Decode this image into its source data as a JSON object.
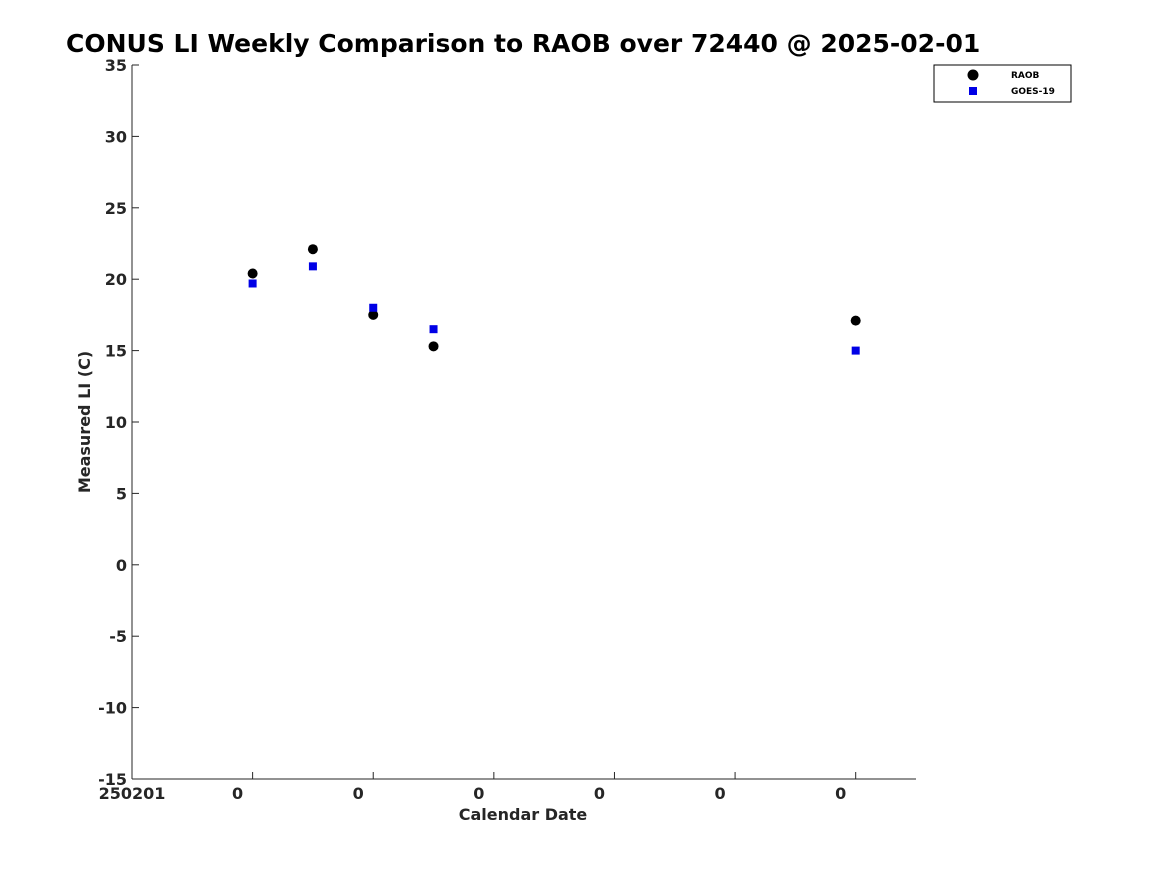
{
  "chart_data": {
    "type": "scatter",
    "title": "CONUS LI Weekly Comparison to RAOB over 72440 @ 2025-02-01",
    "xlabel": "Calendar Date",
    "ylabel": "Measured LI (C)",
    "xlim": [
      0,
      6.5
    ],
    "ylim": [
      -15,
      35
    ],
    "yticks": [
      35,
      30,
      25,
      20,
      15,
      10,
      5,
      0,
      -5,
      -10,
      -15
    ],
    "yticklabels": [
      "35",
      "30",
      "25",
      "20",
      "15",
      "10",
      "5",
      "0",
      "-5",
      "-10",
      "-15"
    ],
    "xticks": [
      0,
      1,
      2,
      3,
      4,
      5,
      6
    ],
    "xticklabels": [
      "250201",
      "0",
      "0",
      "0",
      "0",
      "0",
      "0"
    ],
    "grid": false,
    "legend_position": "top-right",
    "series": [
      {
        "name": "RAOB",
        "marker": "circle",
        "color": "#000000",
        "x": [
          1.0,
          1.5,
          2.0,
          2.5,
          6.0
        ],
        "values": [
          20.4,
          22.1,
          17.5,
          15.3,
          17.1
        ]
      },
      {
        "name": "GOES-19",
        "marker": "square",
        "color": "#0000e6",
        "x": [
          1.0,
          1.5,
          2.0,
          2.5,
          6.0
        ],
        "values": [
          19.7,
          20.9,
          18.0,
          16.5,
          15.0
        ]
      }
    ]
  }
}
